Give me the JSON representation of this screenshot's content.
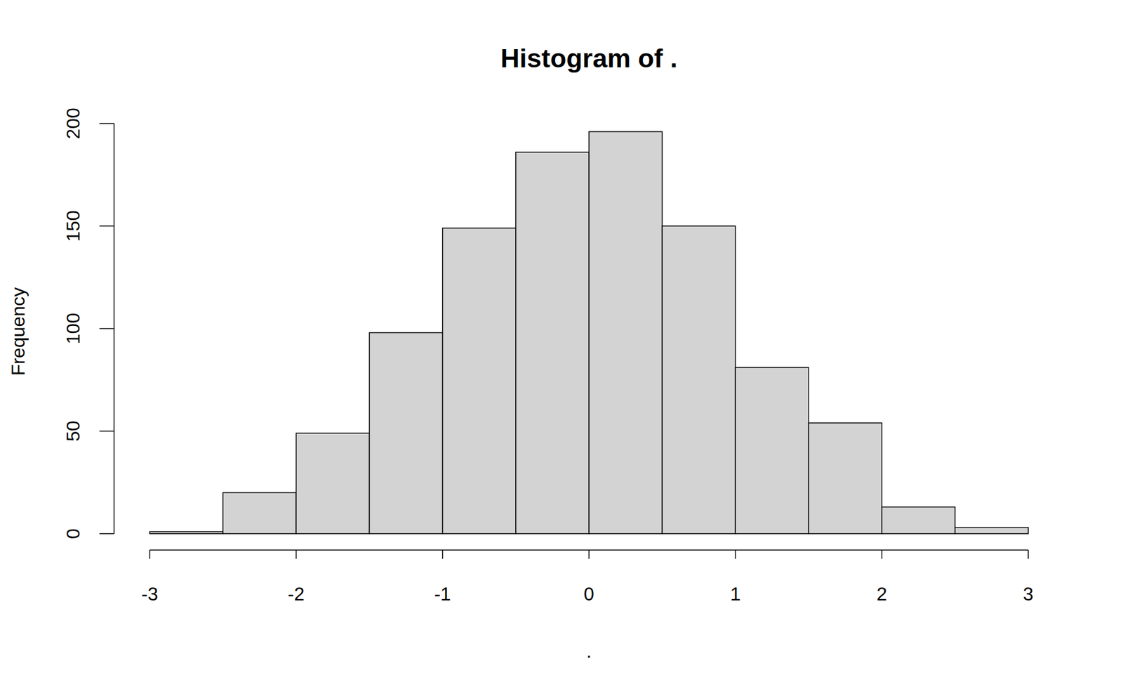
{
  "chart_data": {
    "type": "histogram",
    "title": "Histogram of .",
    "x_label": ".",
    "y_label": "Frequency",
    "bins": [
      -3,
      -2.5,
      -2,
      -1.5,
      -1,
      -0.5,
      0,
      0.5,
      1,
      1.5,
      2,
      2.5,
      3
    ],
    "values": [
      1,
      20,
      49,
      98,
      149,
      186,
      196,
      150,
      81,
      54,
      13,
      3
    ],
    "color": "#d3d3d3",
    "xlim": [
      -3,
      3
    ],
    "xticks": [
      -3,
      -2,
      -1,
      0,
      1,
      2,
      3
    ],
    "ylim": [
      0,
      200
    ],
    "yticks": [
      0,
      50,
      100,
      150,
      200
    ],
    "grid": false
  }
}
